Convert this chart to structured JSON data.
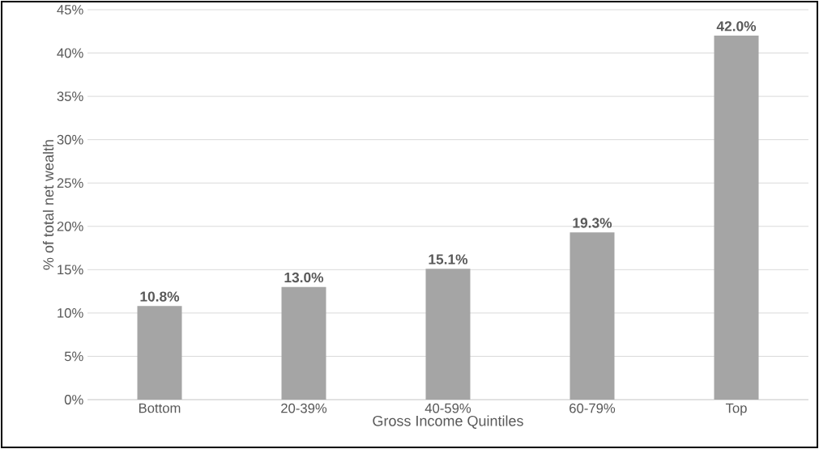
{
  "chart_data": {
    "type": "bar",
    "xlabel": "Gross Income Quintiles",
    "ylabel": "% of total net wealth",
    "categories": [
      "Bottom",
      "20-39%",
      "40-59%",
      "60-79%",
      "Top"
    ],
    "values": [
      10.8,
      13.0,
      15.1,
      19.3,
      42.0
    ],
    "value_labels": [
      "10.8%",
      "13.0%",
      "15.1%",
      "19.3%",
      "42.0%"
    ],
    "color": "#a5a5a5",
    "grid": "y",
    "ylim": [
      0,
      45
    ],
    "yticks": [
      {
        "value": 0,
        "label": "0%"
      },
      {
        "value": 5,
        "label": "5%"
      },
      {
        "value": 10,
        "label": "10%"
      },
      {
        "value": 15,
        "label": "15%"
      },
      {
        "value": 20,
        "label": "20%"
      },
      {
        "value": 25,
        "label": "25%"
      },
      {
        "value": 30,
        "label": "30%"
      },
      {
        "value": 35,
        "label": "35%"
      },
      {
        "value": 40,
        "label": "40%"
      },
      {
        "value": 45,
        "label": "45%"
      }
    ]
  }
}
